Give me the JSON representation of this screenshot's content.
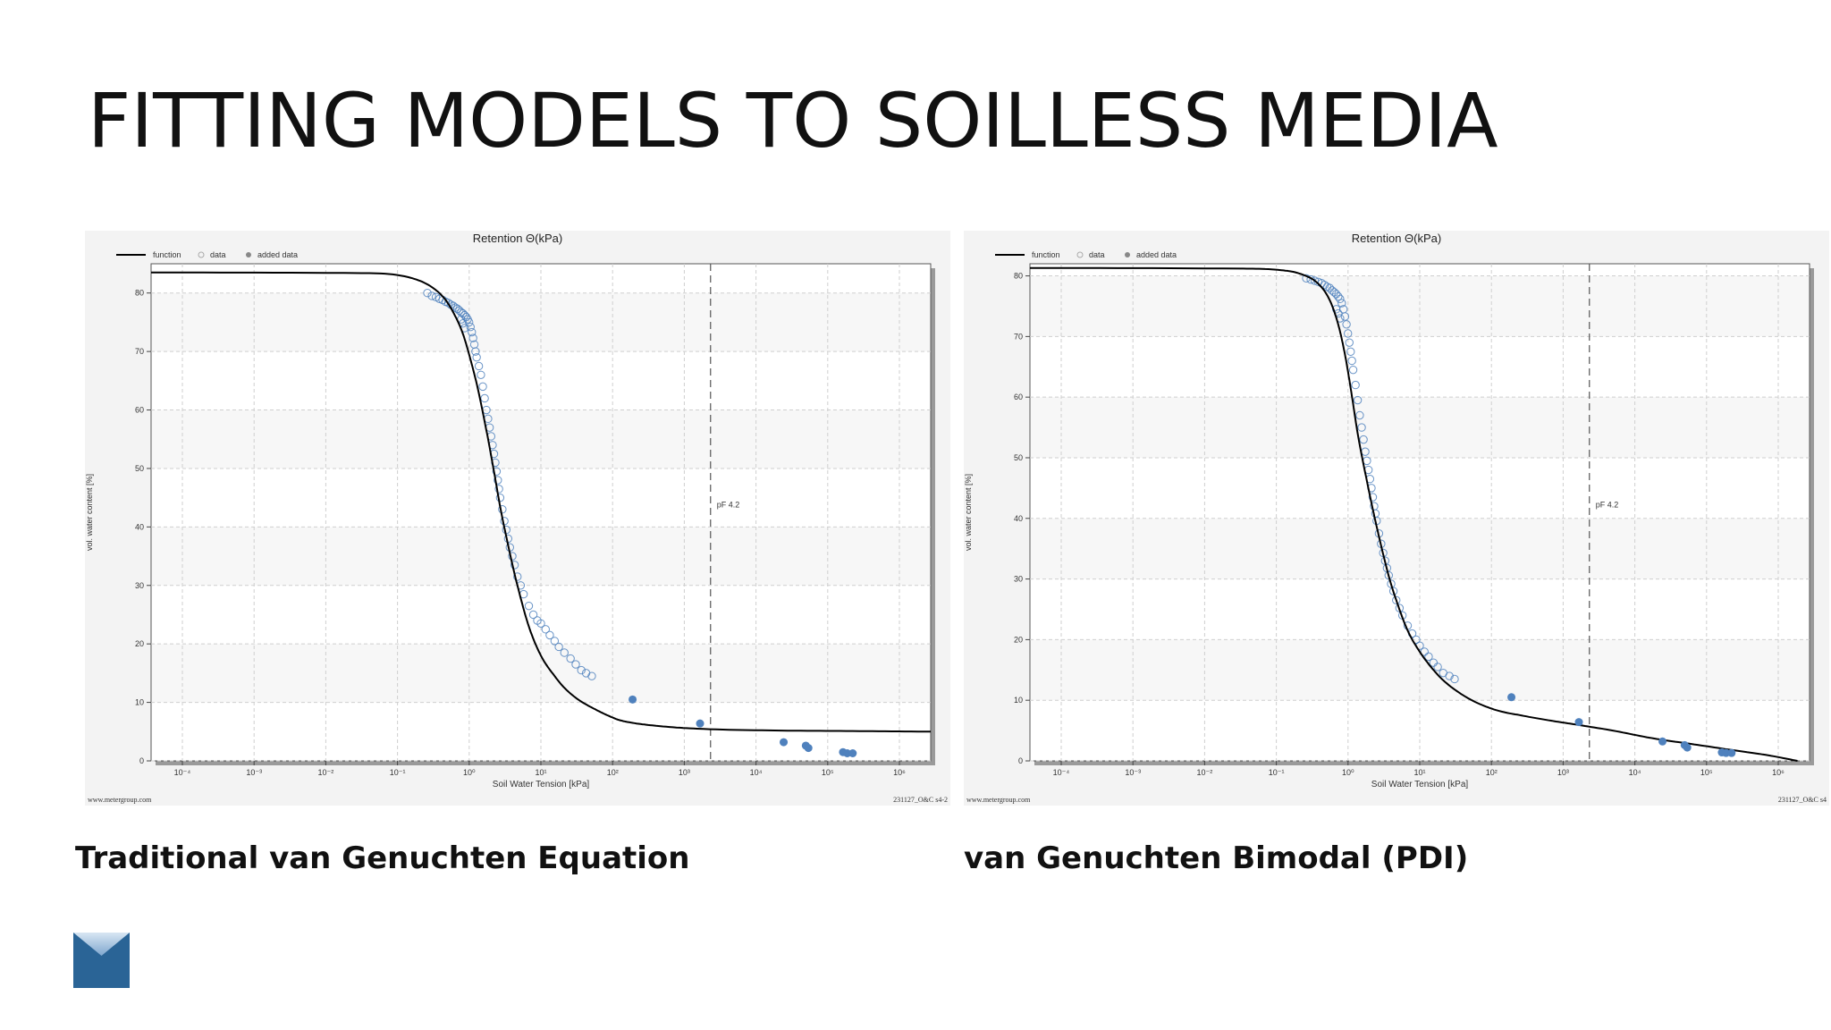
{
  "slide": {
    "title": "FITTING MODELS TO SOILLESS MEDIA",
    "captions": [
      "Traditional van Genuchten Equation",
      "van Genuchten Bimodal (PDI)"
    ]
  },
  "colors": {
    "function_line": "#000000",
    "data_marker": "#4f81bd",
    "added_data_marker": "#4f81bd",
    "panel_background": "#f3f3f3",
    "plot_band": "#f7f7f7",
    "logo_blue": "#2a6496"
  },
  "chart_data": [
    {
      "type": "scatter",
      "title": "Retention Θ(kPa)",
      "legend": [
        "function",
        "data",
        "added data"
      ],
      "legend_position": "top-left",
      "xlabel": "Soil Water Tension [kPa]",
      "ylabel": "vol. water content [%]",
      "x_scale": "log",
      "xlim": [
        0.0001,
        1000000
      ],
      "ylim": [
        0,
        85
      ],
      "x_tick_labels": [
        "10⁻⁴",
        "10⁻³",
        "10⁻²",
        "10⁻¹",
        "10⁰",
        "10¹",
        "10²",
        "10³",
        "10⁴",
        "10⁵",
        "10⁶"
      ],
      "y_ticks": [
        0,
        10,
        20,
        30,
        40,
        50,
        60,
        70,
        80
      ],
      "grid": true,
      "annotation": {
        "text": "pF 4.2",
        "x": 1500
      },
      "footer_left": "www.metergroup.com",
      "footer_right": "231127_O&C s4-2",
      "function": {
        "x": [
          0.0001,
          0.05,
          0.2,
          0.4,
          0.6,
          0.8,
          1,
          1.2,
          1.5,
          2,
          2.5,
          3,
          4,
          5,
          7,
          10,
          15,
          20,
          30,
          50,
          80,
          100,
          150,
          300,
          1000,
          10000,
          100000,
          1000000
        ],
        "y": [
          83.5,
          83.4,
          82.7,
          81.0,
          78.8,
          76.0,
          73.0,
          69.5,
          64.5,
          56.5,
          49.5,
          43.5,
          35.5,
          30.0,
          23.0,
          18.0,
          14.5,
          12.5,
          10.5,
          8.8,
          7.5,
          7.0,
          6.5,
          6.0,
          5.5,
          5.2,
          5.1,
          5.0
        ]
      },
      "data": {
        "x": [
          0.35,
          0.4,
          0.45,
          0.5,
          0.55,
          0.6,
          0.65,
          0.7,
          0.75,
          0.8,
          0.85,
          0.9,
          0.95,
          1.0,
          1.05,
          1.1,
          1.15,
          1.2,
          1.25,
          1.3,
          1.35,
          1.4,
          1.45,
          1.5,
          1.6,
          1.7,
          1.8,
          1.9,
          2.0,
          2.1,
          2.2,
          2.3,
          2.4,
          2.5,
          2.6,
          2.7,
          2.8,
          2.9,
          3.0,
          3.2,
          3.4,
          3.6,
          3.8,
          4.0,
          4.3,
          4.6,
          5.0,
          5.5,
          6.0,
          7.0,
          8.0,
          9.0,
          10.0,
          11.5,
          13.0,
          15.0,
          17.0,
          20.0,
          24.0,
          28.0,
          33.0,
          38.0,
          45.0,
          0.95,
          1.0,
          1.05
        ],
        "y": [
          80,
          79.5,
          79.3,
          79,
          78.8,
          78.5,
          78.3,
          78,
          77.8,
          77.5,
          77.3,
          77,
          76.7,
          76.5,
          76.2,
          75.9,
          75.5,
          75,
          74.2,
          73.3,
          72.3,
          71.2,
          70,
          69,
          67.5,
          66,
          64,
          62,
          60,
          58.5,
          57,
          55.5,
          54,
          52.5,
          51,
          49.5,
          48,
          46.5,
          45,
          43,
          41,
          39.5,
          38,
          36.5,
          35,
          33.5,
          31.5,
          30,
          28.5,
          26.5,
          25,
          24,
          23.5,
          22.5,
          21.5,
          20.5,
          19.5,
          18.5,
          17.5,
          16.5,
          15.5,
          15,
          14.5,
          75.5,
          74.8,
          74.0
        ]
      },
      "added_data": {
        "x": [
          150,
          1100,
          13000,
          25000,
          27000,
          75000,
          85000,
          100000
        ],
        "y": [
          10.5,
          6.4,
          3.2,
          2.6,
          2.2,
          1.5,
          1.3,
          1.3
        ]
      }
    },
    {
      "type": "scatter",
      "title": "Retention Θ(kPa)",
      "legend": [
        "function",
        "data",
        "added data"
      ],
      "legend_position": "top-left",
      "xlabel": "Soil Water Tension [kPa]",
      "ylabel": "vol. water content [%]",
      "x_scale": "log",
      "xlim": [
        0.0001,
        1000000
      ],
      "ylim": [
        0,
        82
      ],
      "x_tick_labels": [
        "10⁻⁴",
        "10⁻³",
        "10⁻²",
        "10⁻¹",
        "10⁰",
        "10¹",
        "10²",
        "10³",
        "10⁴",
        "10⁵",
        "10⁶"
      ],
      "y_ticks": [
        0,
        10,
        20,
        30,
        40,
        50,
        60,
        70,
        80
      ],
      "grid": true,
      "annotation": {
        "text": "pF 4.2",
        "x": 1500
      },
      "footer_left": "www.metergroup.com",
      "footer_right": "231127_O&C s4",
      "function": {
        "x": [
          0.0001,
          0.05,
          0.15,
          0.3,
          0.5,
          0.7,
          0.9,
          1.1,
          1.3,
          1.6,
          2.0,
          2.5,
          3.0,
          4.0,
          5.0,
          7.0,
          10,
          15,
          20,
          30,
          50,
          100,
          200,
          500,
          1000,
          3000,
          10000,
          30000,
          100000,
          300000,
          700000
        ],
        "y": [
          81.3,
          81.2,
          81.0,
          80.3,
          78.7,
          76.0,
          72.0,
          67.0,
          61.5,
          54.0,
          47.5,
          41.5,
          37.0,
          30.5,
          26.5,
          21.5,
          18.0,
          15.0,
          13.3,
          11.5,
          9.8,
          8.3,
          7.5,
          6.6,
          6.0,
          5.0,
          3.7,
          2.8,
          1.8,
          0.9,
          0.0
        ]
      },
      "data": {
        "x": [
          0.35,
          0.4,
          0.45,
          0.5,
          0.55,
          0.6,
          0.65,
          0.7,
          0.75,
          0.8,
          0.85,
          0.9,
          0.95,
          1.0,
          1.05,
          1.1,
          1.15,
          1.2,
          1.25,
          1.3,
          1.35,
          1.4,
          1.5,
          1.6,
          1.7,
          1.8,
          1.9,
          2.0,
          2.1,
          2.2,
          2.3,
          2.4,
          2.5,
          2.6,
          2.7,
          2.8,
          3.0,
          3.2,
          3.4,
          3.6,
          3.8,
          4.0,
          4.3,
          4.6,
          5.0,
          5.5,
          6.0,
          7.0,
          8.0,
          9.0,
          10.0,
          11.5,
          13.0,
          15.0,
          17.0,
          20.0,
          24.0,
          28.0,
          0.85,
          0.9,
          0.95
        ],
        "y": [
          79.6,
          79.4,
          79.2,
          79,
          78.8,
          78.5,
          78.2,
          78,
          77.6,
          77.3,
          77,
          76.6,
          76.2,
          75.5,
          74.5,
          73.3,
          72,
          70.5,
          69,
          67.5,
          66,
          64.5,
          62,
          59.5,
          57,
          55,
          53,
          51,
          49.5,
          48,
          46.5,
          45,
          43.5,
          42,
          40.8,
          39.6,
          37.5,
          35.8,
          34.3,
          33,
          31.8,
          30.6,
          29.2,
          28,
          26.5,
          25.2,
          24,
          22.3,
          21,
          20,
          19,
          18,
          17.2,
          16.2,
          15.5,
          14.5,
          14,
          13.5,
          74.5,
          73.8,
          73.0
        ]
      },
      "added_data": {
        "x": [
          150,
          1100,
          13000,
          25000,
          27000,
          75000,
          85000,
          100000
        ],
        "y": [
          10.5,
          6.4,
          3.2,
          2.6,
          2.2,
          1.4,
          1.3,
          1.3
        ]
      }
    }
  ]
}
